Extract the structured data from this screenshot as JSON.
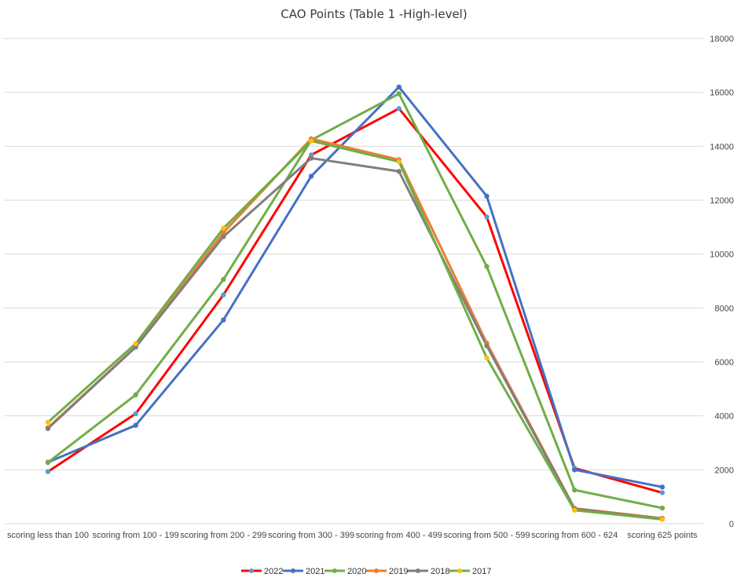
{
  "chart_data": {
    "type": "line",
    "title": "CAO Points (Table 1 -High-level)",
    "xlabel": "",
    "ylabel": "",
    "categories": [
      "scoring less than 100",
      "scoring from 100 - 199",
      "scoring from 200 - 299",
      "scoring from 300 - 399",
      "scoring from 400 - 499",
      "scoring from 500 - 599",
      "scoring from 600 - 624",
      "scoring 625 points"
    ],
    "ylim": [
      0,
      18000
    ],
    "yticks": [
      "0",
      "2000",
      "4000",
      "6000",
      "8000",
      "10000",
      "12000",
      "14000",
      "16000",
      "18000"
    ],
    "y_axis_position": "right",
    "grid": true,
    "legend_position": "bottom",
    "series": [
      {
        "name": "2022",
        "line_color": "#ff0000",
        "marker_color": "#5b9bd5",
        "values": [
          1930,
          4080,
          8490,
          13680,
          15400,
          11380,
          2060,
          1150
        ]
      },
      {
        "name": "2021",
        "line_color": "#4472c4",
        "marker_color": "#4472c4",
        "values": [
          2280,
          3650,
          7560,
          12890,
          16200,
          12150,
          2000,
          1360
        ]
      },
      {
        "name": "2020",
        "line_color": "#70ad47",
        "marker_color": "#70ad47",
        "values": [
          2270,
          4780,
          9060,
          14230,
          15950,
          9540,
          1250,
          580
        ]
      },
      {
        "name": "2019",
        "line_color": "#ed7d31",
        "marker_color": "#ed7d31",
        "values": [
          3560,
          6560,
          10800,
          14280,
          13500,
          6700,
          570,
          200
        ]
      },
      {
        "name": "2018",
        "line_color": "#7f7f7f",
        "marker_color": "#7f7f7f",
        "values": [
          3530,
          6550,
          10650,
          13560,
          13070,
          6600,
          550,
          180
        ]
      },
      {
        "name": "2017",
        "line_color": "#70ad47",
        "marker_color": "#ffc000",
        "values": [
          3760,
          6680,
          10960,
          14200,
          13430,
          6150,
          500,
          160
        ]
      }
    ]
  }
}
